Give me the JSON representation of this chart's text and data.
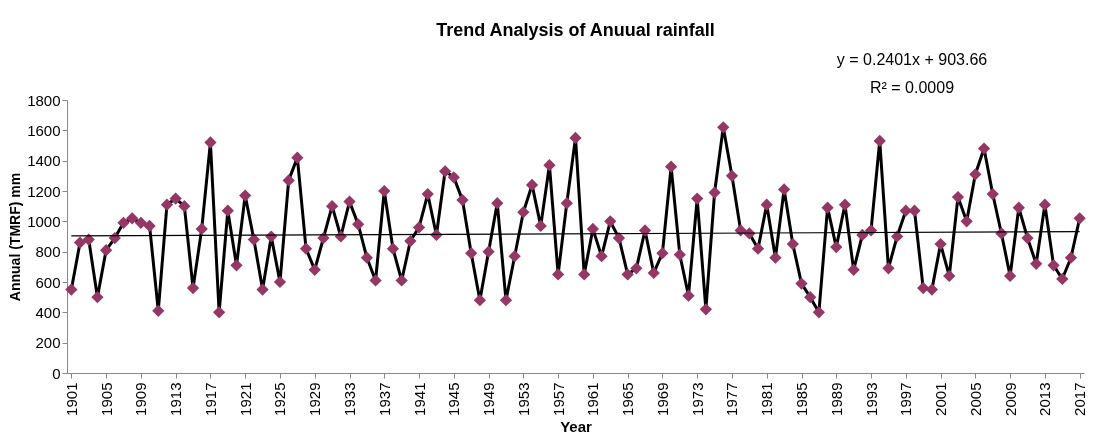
{
  "chart_data": {
    "type": "line",
    "title": "Trend Analysis of Anuual rainfall",
    "xlabel": "Year",
    "ylabel": "Annual (TMRF) mm",
    "annotations": [
      "y = 0.2401x + 903.66",
      "R² = 0.0009"
    ],
    "x": [
      1901,
      1902,
      1903,
      1904,
      1905,
      1906,
      1907,
      1908,
      1909,
      1910,
      1911,
      1912,
      1913,
      1914,
      1915,
      1916,
      1917,
      1918,
      1919,
      1920,
      1921,
      1922,
      1923,
      1924,
      1925,
      1926,
      1927,
      1928,
      1929,
      1930,
      1931,
      1932,
      1933,
      1934,
      1935,
      1936,
      1937,
      1938,
      1939,
      1940,
      1941,
      1942,
      1943,
      1944,
      1945,
      1946,
      1947,
      1948,
      1949,
      1950,
      1951,
      1952,
      1953,
      1954,
      1955,
      1956,
      1957,
      1958,
      1959,
      1960,
      1961,
      1962,
      1963,
      1964,
      1965,
      1966,
      1967,
      1968,
      1969,
      1970,
      1971,
      1972,
      1973,
      1974,
      1975,
      1976,
      1977,
      1978,
      1979,
      1980,
      1981,
      1982,
      1983,
      1984,
      1985,
      1986,
      1987,
      1988,
      1989,
      1990,
      1991,
      1992,
      1993,
      1994,
      1995,
      1996,
      1997,
      1998,
      1999,
      2000,
      2001,
      2002,
      2003,
      2004,
      2005,
      2006,
      2007,
      2008,
      2009,
      2010,
      2011,
      2012,
      2013,
      2014,
      2015,
      2016,
      2017
    ],
    "series": [
      {
        "type": "line",
        "marker": "diamond",
        "color": "#953765",
        "values": [
          550,
          860,
          880,
          500,
          810,
          890,
          990,
          1020,
          990,
          970,
          410,
          1110,
          1150,
          1100,
          560,
          950,
          1520,
          400,
          1070,
          710,
          1170,
          880,
          550,
          900,
          600,
          1270,
          1420,
          820,
          680,
          890,
          1100,
          900,
          1130,
          980,
          760,
          610,
          1200,
          820,
          610,
          870,
          960,
          1180,
          910,
          1330,
          1290,
          1140,
          790,
          480,
          800,
          1120,
          480,
          770,
          1060,
          1240,
          970,
          1370,
          650,
          1120,
          1550,
          650,
          950,
          770,
          1000,
          890,
          650,
          690,
          940,
          660,
          790,
          1360,
          780,
          510,
          1150,
          420,
          1190,
          1620,
          1300,
          940,
          920,
          820,
          1110,
          760,
          1210,
          850,
          590,
          500,
          400,
          1090,
          830,
          1110,
          680,
          910,
          940,
          1530,
          690,
          900,
          1070,
          1070,
          560,
          550,
          850,
          640,
          1160,
          1000,
          1310,
          1480,
          1180,
          920,
          640,
          1090,
          890,
          720,
          1110,
          710,
          620,
          760,
          1020
        ]
      },
      {
        "type": "line",
        "marker": "none",
        "color": "#000000",
        "x": [
          1901,
          2017
        ],
        "values": [
          904,
          932
        ]
      }
    ],
    "xlim": [
      1900.5,
      2017.5
    ],
    "xticks": [
      1901,
      1905,
      1909,
      1913,
      1917,
      1921,
      1925,
      1929,
      1933,
      1937,
      1941,
      1945,
      1949,
      1953,
      1957,
      1961,
      1965,
      1969,
      1973,
      1977,
      1981,
      1985,
      1989,
      1993,
      1997,
      2001,
      2005,
      2009,
      2013,
      2017
    ],
    "ylim": [
      0,
      1800
    ],
    "yticks": [
      0,
      200,
      400,
      600,
      800,
      1000,
      1200,
      1400,
      1600,
      1800
    ],
    "grid": false
  }
}
